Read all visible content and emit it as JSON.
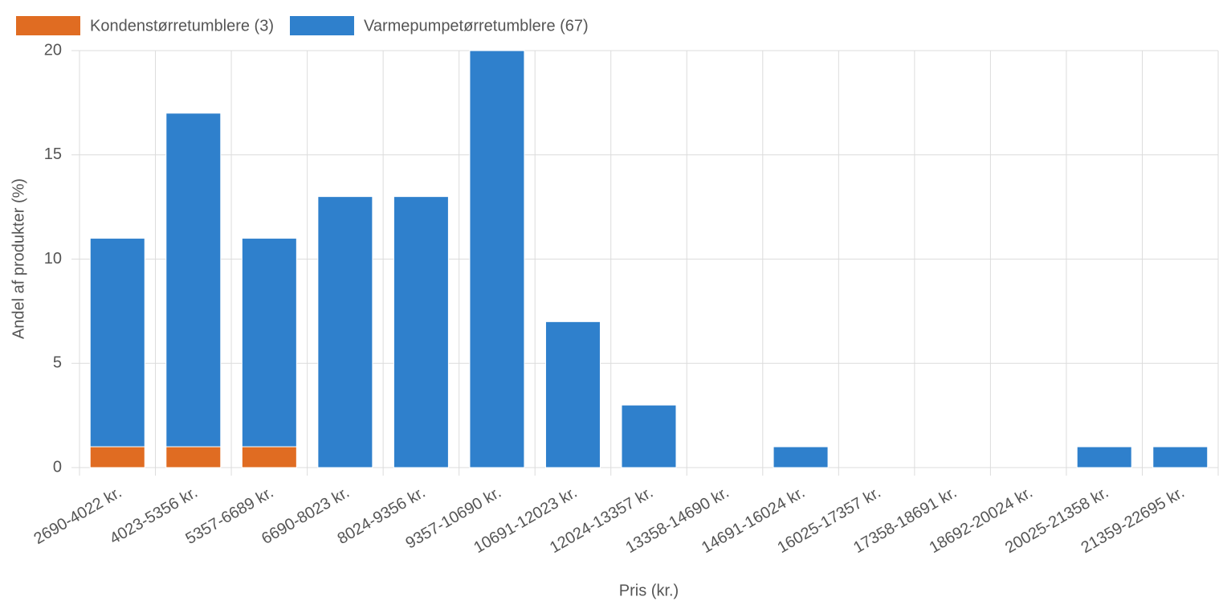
{
  "chart_data": {
    "type": "stacked_bar",
    "x_label": "Pris (kr.)",
    "y_label": "Andel af produkter (%)",
    "categories": [
      "2690-4022 kr.",
      "4023-5356 kr.",
      "5357-6689 kr.",
      "6690-8023 kr.",
      "8024-9356 kr.",
      "9357-10690 kr.",
      "10691-12023 kr.",
      "12024-13357 kr.",
      "13358-14690 kr.",
      "14691-16024 kr.",
      "16025-17357 kr.",
      "17358-18691 kr.",
      "18692-20024 kr.",
      "20025-21358 kr.",
      "21359-22695 kr."
    ],
    "series": [
      {
        "name": "Kondenstørretumblere (3)",
        "color": "#e06c22",
        "values": [
          1,
          1,
          1,
          0,
          0,
          0,
          0,
          0,
          0,
          0,
          0,
          0,
          0,
          0,
          0
        ]
      },
      {
        "name": "Varmepumpetørretumblere (67)",
        "color": "#2f80cc",
        "values": [
          10,
          16,
          10,
          13,
          13,
          20,
          7,
          3,
          0,
          1,
          0,
          0,
          0,
          1,
          1
        ]
      }
    ],
    "ylim": [
      0,
      20
    ],
    "yticks": [
      0,
      5,
      10,
      15,
      20
    ],
    "grid": true
  }
}
